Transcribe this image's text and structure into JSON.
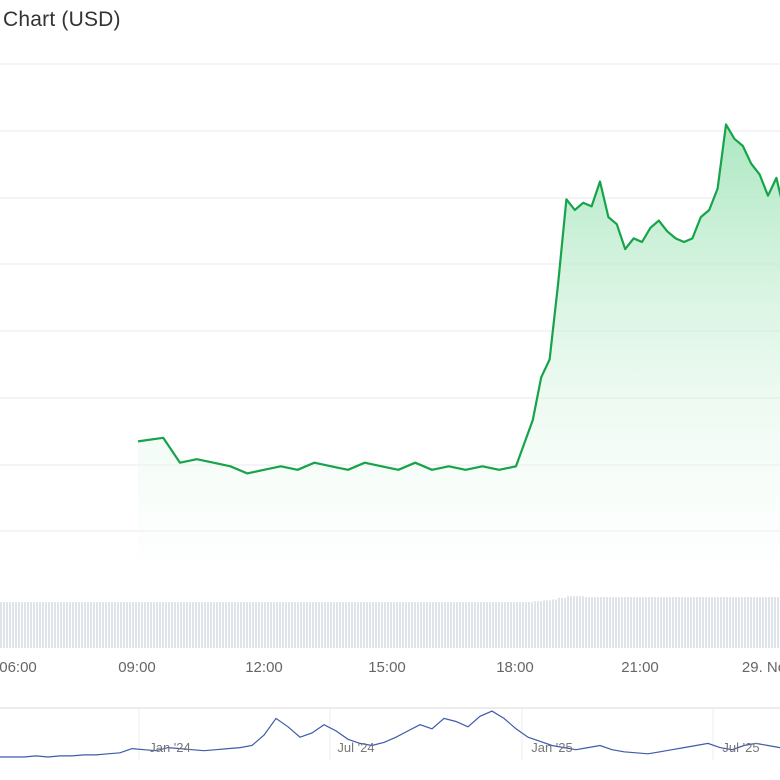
{
  "chart_title": "Chart (USD)",
  "colors": {
    "line": "#16a34a",
    "area_top": "#a7e6bd",
    "grid": "#e9e9e9",
    "volume": "#dfe3ea",
    "navigator_line": "#3d5ba9",
    "navigator_border": "#d9d9d9"
  },
  "chart_data": {
    "type": "area",
    "title": "Chart (USD)",
    "x_axis_labels": [
      "06:00",
      "09:00",
      "12:00",
      "15:00",
      "18:00",
      "21:00",
      "29. No"
    ],
    "x_hours": [
      4.0,
      4.6,
      5.0,
      5.4,
      5.8,
      6.2,
      6.6,
      7.0,
      7.4,
      7.8,
      8.2,
      8.6,
      9.0,
      9.4,
      9.8,
      10.2,
      10.6,
      11.0,
      11.4,
      11.8,
      12.2,
      12.6,
      13.0,
      13.4,
      13.6,
      13.8,
      14.0,
      14.2,
      14.4,
      14.6,
      14.8,
      15.0,
      15.2,
      15.4,
      15.6,
      15.8,
      16.0,
      16.2,
      16.4,
      16.6,
      16.8,
      17.0,
      17.2,
      17.4,
      17.6,
      17.8,
      18.0,
      18.2,
      18.4,
      18.6,
      18.8,
      19.0,
      19.2,
      19.4,
      19.6,
      19.8,
      20.0,
      20.2,
      20.4,
      20.6,
      20.8,
      21.0,
      21.2,
      21.4,
      21.6,
      21.8,
      22.0,
      22.2,
      22.4,
      22.6,
      22.8,
      23.0,
      23.2,
      23.4,
      23.6,
      23.8,
      24.0,
      24.2
    ],
    "price_index": [
      29,
      30,
      23,
      24,
      23,
      22,
      20,
      21,
      22,
      21,
      23,
      22,
      21,
      23,
      22,
      21,
      23,
      21,
      22,
      21,
      22,
      21,
      22,
      35,
      47,
      52,
      73,
      97,
      94,
      96,
      95,
      102,
      92,
      90,
      83,
      86,
      85,
      89,
      91,
      88,
      86,
      85,
      86,
      92,
      94,
      100,
      118,
      114,
      112,
      107,
      104,
      98,
      103,
      93,
      86,
      84,
      86,
      85,
      93,
      89,
      85,
      90,
      86,
      91,
      82,
      84,
      86,
      98,
      100,
      95,
      92,
      96,
      100,
      99,
      101,
      106,
      98,
      95
    ],
    "volume_index": [
      54,
      54,
      54,
      54,
      54,
      54,
      54,
      54,
      54,
      54,
      54,
      54,
      54,
      54,
      54,
      54,
      54,
      54,
      54,
      54,
      54,
      54,
      54,
      55,
      56,
      57,
      59,
      61,
      61,
      60,
      60,
      60,
      60,
      60,
      60,
      60,
      60,
      60,
      60,
      60,
      60,
      60,
      60,
      60,
      60,
      60,
      60,
      60,
      60,
      60,
      60,
      60,
      60,
      60,
      60,
      60,
      60,
      60,
      60,
      60,
      60,
      60,
      60,
      60,
      60,
      60,
      60,
      60,
      60,
      60,
      60,
      60,
      60,
      60,
      60,
      60,
      60,
      60
    ],
    "navigator": {
      "labels": [
        "Jan '24",
        "Jul '24",
        "Jan '25",
        "Jul '25"
      ],
      "values": [
        1,
        1,
        1,
        2,
        1,
        2,
        2,
        3,
        3,
        4,
        5,
        9,
        8,
        7,
        10,
        9,
        8,
        7,
        8,
        9,
        10,
        12,
        22,
        38,
        30,
        20,
        24,
        32,
        26,
        18,
        14,
        12,
        15,
        20,
        26,
        32,
        28,
        38,
        35,
        30,
        40,
        45,
        38,
        28,
        20,
        16,
        12,
        10,
        8,
        10,
        12,
        8,
        6,
        5,
        4,
        6,
        8,
        10,
        12,
        14,
        10,
        8,
        12,
        14,
        12,
        10
      ]
    },
    "grid": true
  }
}
